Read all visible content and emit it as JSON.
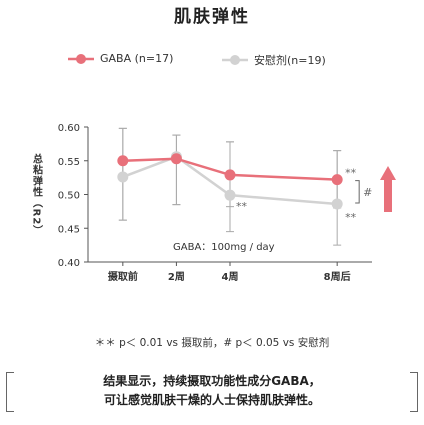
{
  "title": "肌肤弹性",
  "legend": [
    {
      "label": "GABA (n=17)",
      "color": "#e8707a"
    },
    {
      "label": "安慰剂(n=19)",
      "color": "#d2d2d2"
    }
  ],
  "chart_data": {
    "type": "line",
    "title": "肌肤弹性",
    "ylabel": "总粘弹性（R2）",
    "xlabel": "",
    "categories": [
      "摄取前",
      "2周",
      "4周",
      "8周后"
    ],
    "x_weeks": [
      0,
      2,
      4,
      8
    ],
    "ylim": [
      0.4,
      0.6
    ],
    "yticks": [
      "0.60",
      "0.55",
      "0.50",
      "0.45",
      "0.40"
    ],
    "series": [
      {
        "name": "GABA (n=17)",
        "color": "#e8707a",
        "values": [
          0.55,
          0.553,
          0.529,
          0.522
        ],
        "error_upper": [
          0.598,
          0.588,
          0.578,
          0.565
        ],
        "error_lower": [
          0.462,
          0.485,
          0.482,
          0.48
        ]
      },
      {
        "name": "安慰剂(n=19)",
        "color": "#d2d2d2",
        "values": [
          0.526,
          0.556,
          0.499,
          0.486
        ],
        "error_upper": [
          0.598,
          0.588,
          0.578,
          0.565
        ],
        "error_lower": [
          0.462,
          0.485,
          0.445,
          0.425
        ]
      }
    ],
    "annotations": {
      "dose": "GABA：100mg / day",
      "gaba_sig_8w": "**",
      "placebo_sig_4w": "**",
      "placebo_sig_8w": "**",
      "between_groups_8w": "#"
    }
  },
  "footnote": "＊＊ p＜ 0.01 vs 摄取前，# p＜ 0.05 vs 安慰剂",
  "conclusion": [
    "结果显示，持续摄取功能性成分GABA，",
    "可让感觉肌肤干燥的人士保持肌肤弹性。"
  ],
  "arrow_color": "#e8707a"
}
